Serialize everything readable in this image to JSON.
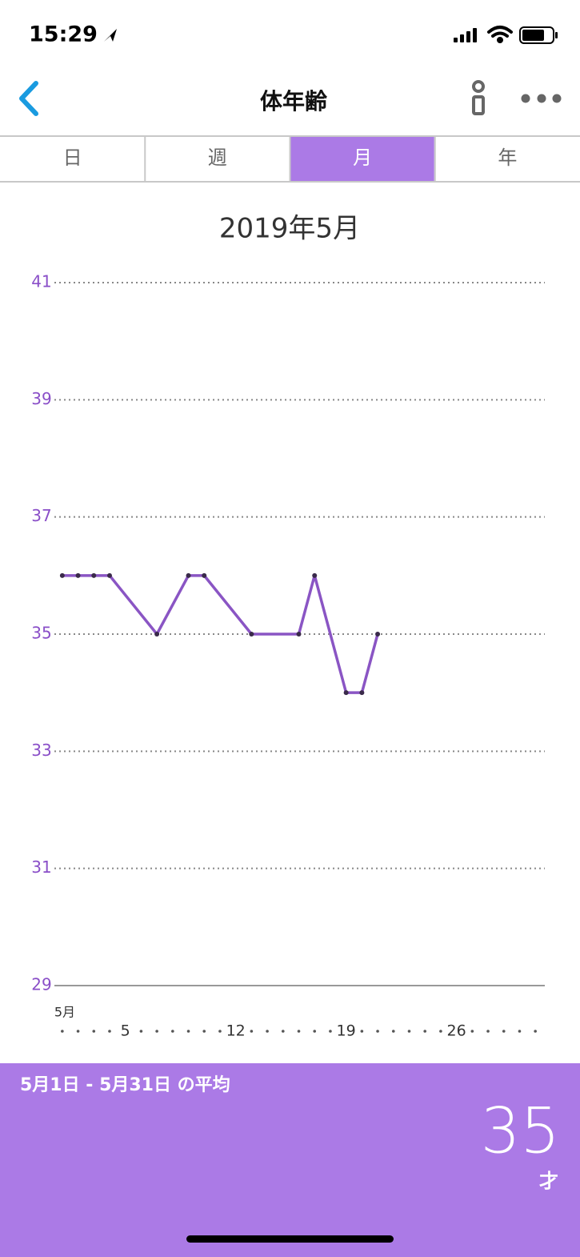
{
  "status_bar": {
    "time": "15:29"
  },
  "nav": {
    "title": "体年齢"
  },
  "tabs": {
    "items": [
      "日",
      "週",
      "月",
      "年"
    ],
    "active": 2
  },
  "chart_data": {
    "type": "line",
    "title": "2019年5月",
    "x": [
      1,
      2,
      3,
      4,
      7,
      9,
      10,
      13,
      16,
      17,
      19,
      20,
      21
    ],
    "values": [
      36,
      36,
      36,
      36,
      35,
      36,
      36,
      35,
      35,
      36,
      34,
      34,
      35
    ],
    "color": "#8a55c4",
    "xlim": [
      0.5,
      31.6
    ],
    "xticks": [
      {
        "value": 1,
        "label": "5月"
      },
      5,
      12,
      19,
      26
    ],
    "xminorticks": [
      1,
      2,
      3,
      4,
      6,
      7,
      8,
      9,
      10,
      11,
      13,
      14,
      15,
      16,
      17,
      18,
      20,
      21,
      22,
      23,
      24,
      25,
      27,
      28,
      29,
      30,
      31
    ],
    "ylim": [
      29,
      41
    ],
    "yticks": [
      29,
      31,
      33,
      35,
      37,
      39,
      41
    ],
    "grid": true
  },
  "summary": {
    "label": "5月1日 - 5月31日 の平均",
    "value": 35,
    "unit": "才"
  }
}
